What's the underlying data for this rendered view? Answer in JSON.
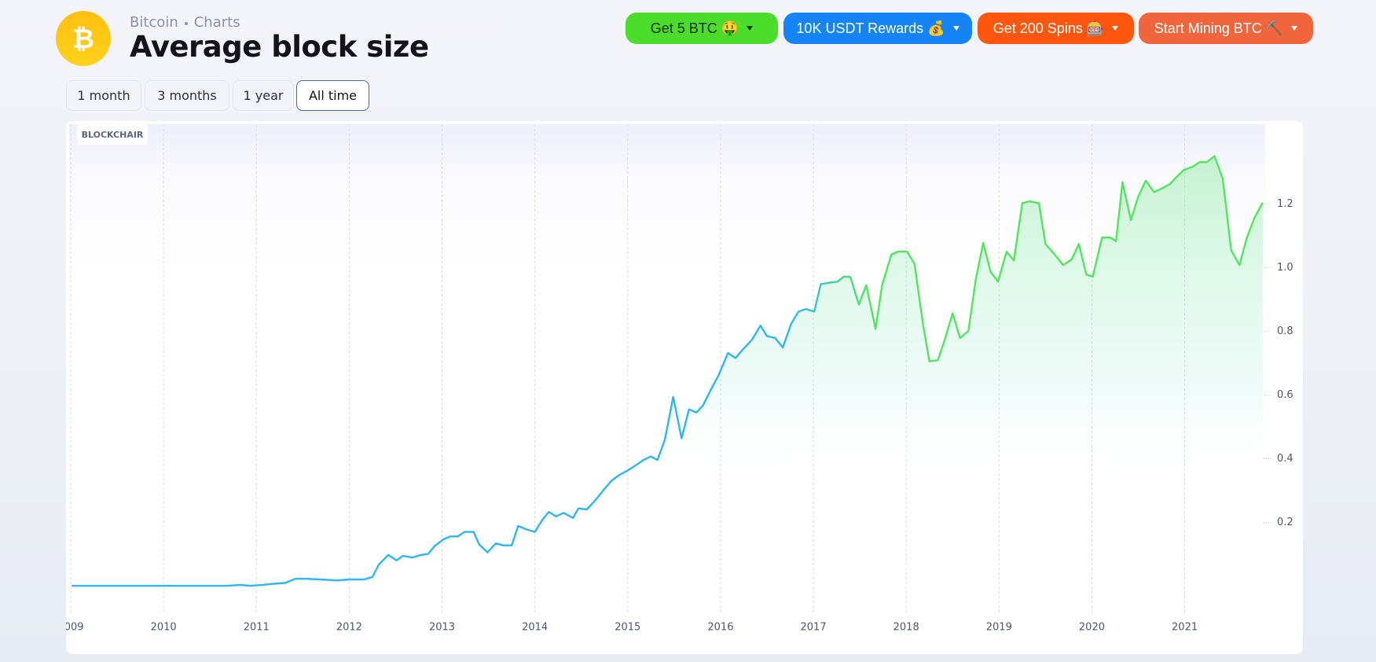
{
  "header": {
    "breadcrumb": [
      "Bitcoin",
      "Charts"
    ],
    "title": "Average block size"
  },
  "promos": [
    {
      "label": "Get 5 BTC 🤑",
      "color": "#4ade2a",
      "text_color": "#1a2a12"
    },
    {
      "label": "10K USDT Rewards 💰",
      "color": "#1484f6",
      "text_color": "#ffffff"
    },
    {
      "label": "Get 200 Spins 🎰",
      "color": "#ff560f",
      "text_color": "#ffffff"
    },
    {
      "label": "Start Mining BTC ⛏️",
      "color": "#f1653d",
      "text_color": "#ffffff"
    }
  ],
  "ranges": [
    "1 month",
    "3 months",
    "1 year",
    "All time"
  ],
  "active_range": 3,
  "watermark": "BLOCKCHAIR",
  "chart_data": {
    "type": "line",
    "color": [
      "#2bb6f6",
      "#4ee85a"
    ],
    "grid": true,
    "x": [
      2009.01,
      2009.65,
      2010.27,
      2010.69,
      2010.83,
      2010.93,
      2011.07,
      2011.16,
      2011.31,
      2011.35,
      2011.42,
      2011.54,
      2011.68,
      2011.87,
      2012.0,
      2012.16,
      2012.25,
      2012.32,
      2012.42,
      2012.51,
      2012.58,
      2012.68,
      2012.77,
      2012.85,
      2012.92,
      2013.02,
      2013.09,
      2013.17,
      2013.24,
      2013.34,
      2013.4,
      2013.49,
      2013.58,
      2013.66,
      2013.75,
      2013.82,
      2013.91,
      2014.0,
      2014.08,
      2014.15,
      2014.23,
      2014.31,
      2014.41,
      2014.47,
      2014.56,
      2014.65,
      2014.74,
      2014.83,
      2014.91,
      2015.0,
      2015.1,
      2015.17,
      2015.25,
      2015.32,
      2015.4,
      2015.49,
      2015.58,
      2015.66,
      2015.74,
      2015.81,
      2015.91,
      2015.98,
      2016.08,
      2016.16,
      2016.25,
      2016.34,
      2016.43,
      2016.5,
      2016.59,
      2016.67,
      2016.76,
      2016.84,
      2016.92,
      2017.01,
      2017.08,
      2017.18,
      2017.26,
      2017.33,
      2017.4,
      2017.49,
      2017.57,
      2017.67,
      2017.74,
      2017.84,
      2017.91,
      2018.01,
      2018.09,
      2018.18,
      2018.25,
      2018.34,
      2018.42,
      2018.5,
      2018.58,
      2018.67,
      2018.75,
      2018.83,
      2018.91,
      2018.99,
      2019.08,
      2019.16,
      2019.25,
      2019.33,
      2019.43,
      2019.5,
      2019.6,
      2019.69,
      2019.78,
      2019.86,
      2019.94,
      2020.01,
      2020.11,
      2020.2,
      2020.26,
      2020.33,
      2020.42,
      2020.5,
      2020.58,
      2020.67,
      2020.75,
      2020.84,
      2020.9,
      2020.99,
      2021.09,
      2021.16,
      2021.24,
      2021.32,
      2021.41,
      2021.5,
      2021.59,
      2021.67,
      2021.75,
      2021.84
    ],
    "values": [
      0.001,
      0.001,
      0.001,
      0.001,
      0.004,
      0.001,
      0.004,
      0.007,
      0.01,
      0.015,
      0.023,
      0.023,
      0.021,
      0.018,
      0.021,
      0.021,
      0.029,
      0.068,
      0.098,
      0.081,
      0.095,
      0.09,
      0.098,
      0.101,
      0.126,
      0.148,
      0.156,
      0.156,
      0.17,
      0.17,
      0.131,
      0.106,
      0.134,
      0.128,
      0.128,
      0.189,
      0.178,
      0.17,
      0.208,
      0.233,
      0.219,
      0.23,
      0.214,
      0.244,
      0.241,
      0.269,
      0.302,
      0.332,
      0.349,
      0.363,
      0.382,
      0.396,
      0.407,
      0.396,
      0.459,
      0.594,
      0.464,
      0.555,
      0.545,
      0.567,
      0.625,
      0.663,
      0.732,
      0.716,
      0.746,
      0.774,
      0.818,
      0.785,
      0.779,
      0.749,
      0.823,
      0.862,
      0.87,
      0.862,
      0.948,
      0.953,
      0.956,
      0.972,
      0.97,
      0.884,
      0.945,
      0.807,
      0.945,
      1.041,
      1.05,
      1.05,
      1.012,
      0.823,
      0.706,
      0.709,
      0.778,
      0.857,
      0.779,
      0.801,
      0.964,
      1.077,
      0.986,
      0.956,
      1.05,
      1.022,
      1.202,
      1.208,
      1.202,
      1.074,
      1.041,
      1.008,
      1.025,
      1.074,
      0.978,
      0.972,
      1.094,
      1.094,
      1.083,
      1.268,
      1.149,
      1.223,
      1.273,
      1.237,
      1.248,
      1.262,
      1.281,
      1.306,
      1.317,
      1.331,
      1.331,
      1.35,
      1.279,
      1.055,
      1.008,
      1.094,
      1.155,
      1.204
    ],
    "xlim": [
      2009,
      2021.85
    ],
    "xticks": [
      2009,
      2010,
      2011,
      2012,
      2013,
      2014,
      2015,
      2016,
      2017,
      2018,
      2019,
      2020,
      2021
    ],
    "ylim": [
      -0.09,
      1.45
    ],
    "yticks": [
      0.2,
      0.4,
      0.6,
      0.8,
      {
        "value": 1,
        "label": "1.0"
      },
      1.2
    ]
  }
}
